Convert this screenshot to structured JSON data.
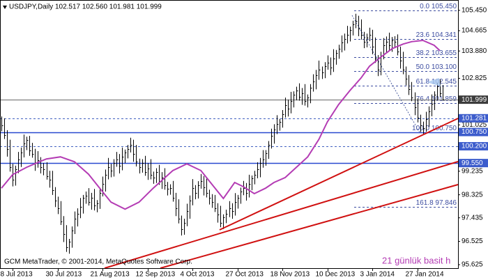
{
  "chart_data": {
    "type": "ohlc",
    "title": "USDJPY,Daily 102.517 102.560 101.981 101.999",
    "footer": "GCM MetaTrader, © 2001-2014, MetaQuotes Software Corp.",
    "series": [
      {
        "color": "#000000",
        "high": [
          101.35,
          101.28,
          100.82,
          100.45,
          99.52,
          99.45,
          99.98,
          100.15,
          100.65,
          100.57,
          100.6,
          100.33,
          100.1,
          100.01,
          99.78,
          99.55,
          99.58,
          99.25,
          99.25,
          98.62,
          98.25,
          98.08,
          97.5,
          97.15,
          96.62,
          97.1,
          97.68,
          97.8,
          98.2,
          98.32,
          98.45,
          98.58,
          98.4,
          98.55,
          98.12,
          98.55,
          99.03,
          99.3,
          99.75,
          99.52,
          99.7,
          99.98,
          99.9,
          100.15,
          100.07,
          100.25,
          100.53,
          100.45,
          100.25,
          99.72,
          99.7,
          99.83,
          99.55,
          99.7,
          99.22,
          99.35,
          99.48,
          99.2,
          99.35,
          98.82,
          98.73,
          98.86,
          98.4,
          98.15,
          97.52,
          97.4,
          97.98,
          98.3,
          98.93,
          98.7,
          98.85,
          99.13,
          99.05,
          98.95,
          98.52,
          98.35,
          98.32,
          98.0,
          97.9,
          97.57,
          97.75,
          98.08,
          98.0,
          98.39,
          98.32,
          98.6,
          98.86,
          98.78,
          99.1,
          99.07,
          99.25,
          99.58,
          99.75,
          100.05,
          100.05,
          100.4,
          100.88,
          101.05,
          101.4,
          101.26,
          101.6,
          102.08,
          102.0,
          102.3,
          102.32,
          102.5,
          102.63,
          102.45,
          102.6,
          102.2,
          102.6,
          102.98,
          103.15,
          103.51,
          103.28,
          103.45,
          103.71,
          103.63,
          103.95,
          103.92,
          104.12,
          104.48,
          104.55,
          104.85,
          104.82,
          105.05,
          105.32,
          105.24,
          105.1,
          104.62,
          104.55,
          104.78,
          104.7,
          104.4,
          103.72,
          103.85,
          104.38,
          104.44,
          104.59,
          104.42,
          104.45,
          104.52,
          104.05,
          103.85,
          103.28,
          102.95,
          102.68,
          102.28,
          102.05,
          101.42,
          101.15,
          101.53,
          101.74,
          102.2,
          102.32,
          102.65,
          102.78,
          102.56
        ],
        "low": [
          100.78,
          100.48,
          99.8,
          99.22,
          98.65,
          98.68,
          99.16,
          99.4,
          99.77,
          100.05,
          99.83,
          99.76,
          99.25,
          99.37,
          99.15,
          99.08,
          98.91,
          98.6,
          98.32,
          97.85,
          97.58,
          97.16,
          96.5,
          96.12,
          96.05,
          96.28,
          96.81,
          97.1,
          97.42,
          97.6,
          97.98,
          97.91,
          97.75,
          97.72,
          97.65,
          97.78,
          98.26,
          98.45,
          98.92,
          99.0,
          99.03,
          99.41,
          99.15,
          99.27,
          99.55,
          99.73,
          99.96,
          99.6,
          99.42,
          99.15,
          99.18,
          99.06,
          98.9,
          98.92,
          98.75,
          98.78,
          98.71,
          98.55,
          98.52,
          98.3,
          98.33,
          98.06,
          97.5,
          97.22,
          96.75,
          96.78,
          97.11,
          97.4,
          97.92,
          98.15,
          98.18,
          98.56,
          98.3,
          98.22,
          97.95,
          97.82,
          97.66,
          97.25,
          97.07,
          97.0,
          97.23,
          97.46,
          97.4,
          97.52,
          97.79,
          97.98,
          98.31,
          98.1,
          98.22,
          98.5,
          98.73,
          98.96,
          99.0,
          99.37,
          99.45,
          99.71,
          100.11,
          100.3,
          100.67,
          100.8,
          100.92,
          101.31,
          101.35,
          101.47,
          101.7,
          101.98,
          101.96,
          101.8,
          101.77,
          101.7,
          101.86,
          102.31,
          102.4,
          102.77,
          102.8,
          102.83,
          103.16,
          102.95,
          103.07,
          103.35,
          103.58,
          103.83,
          103.9,
          104.17,
          104.25,
          104.48,
          104.76,
          104.45,
          104.32,
          103.99,
          104.02,
          104.26,
          103.75,
          103.42,
          102.91,
          102.94,
          103.56,
          103.8,
          103.92,
          103.85,
          104.02,
          103.71,
          103.2,
          102.98,
          102.55,
          102.18,
          101.94,
          101.4,
          101.12,
          100.75,
          100.68,
          100.76,
          100.95,
          101.36,
          101.6,
          101.98,
          102.11,
          101.981
        ],
        "close": [
          101.0,
          100.62,
          100.1,
          99.4,
          98.9,
          99.3,
          99.7,
          99.95,
          100.3,
          100.45,
          100.05,
          99.9,
          99.55,
          99.66,
          99.4,
          99.3,
          99.05,
          98.9,
          98.5,
          98.1,
          97.8,
          97.3,
          96.8,
          96.3,
          96.5,
          96.95,
          97.4,
          97.6,
          97.85,
          98.2,
          98.3,
          98.05,
          98.2,
          97.9,
          98.0,
          98.4,
          98.75,
          99.1,
          99.4,
          99.25,
          99.55,
          99.7,
          99.45,
          99.8,
          99.95,
          100.1,
          100.25,
          99.9,
          99.6,
          99.4,
          99.55,
          99.2,
          99.35,
          99.1,
          99.0,
          99.2,
          98.85,
          99.0,
          98.7,
          98.55,
          98.58,
          98.2,
          97.8,
          97.4,
          97.0,
          97.25,
          97.7,
          98.1,
          98.58,
          98.4,
          98.7,
          98.85,
          98.6,
          98.4,
          98.2,
          98.04,
          97.8,
          97.55,
          97.25,
          97.45,
          97.6,
          97.8,
          97.7,
          98.04,
          98.2,
          98.45,
          98.58,
          98.4,
          98.75,
          98.95,
          99.1,
          99.3,
          99.55,
          99.7,
          99.93,
          100.25,
          100.6,
          100.85,
          101.05,
          101.14,
          101.45,
          101.8,
          101.65,
          101.95,
          102.2,
          102.35,
          102.1,
          102.25,
          101.95,
          102.08,
          102.45,
          102.7,
          102.95,
          103.16,
          103.05,
          103.3,
          103.43,
          103.25,
          103.6,
          103.8,
          103.97,
          104.2,
          104.35,
          104.5,
          104.7,
          104.9,
          105.04,
          104.75,
          104.5,
          104.24,
          104.4,
          104.5,
          104.05,
          103.6,
          103.16,
          103.7,
          104.1,
          104.24,
          104.1,
          104.3,
          104.24,
          103.85,
          103.5,
          103.16,
          102.8,
          102.4,
          102.08,
          101.7,
          101.3,
          101.0,
          100.9,
          101.25,
          101.54,
          101.85,
          102.2,
          102.5,
          102.25,
          101.999
        ]
      }
    ],
    "indicator": {
      "name": "21 günlük basit h",
      "color": "#b43cb4",
      "x": [
        0,
        4,
        9,
        14,
        16,
        21,
        26,
        31,
        35,
        39,
        44,
        49,
        54,
        61,
        66,
        71,
        75,
        79,
        83,
        86,
        90,
        94,
        97,
        101,
        105,
        109,
        113,
        116,
        120,
        124,
        128,
        131,
        135,
        139,
        143,
        146,
        150,
        154,
        156
      ],
      "values": [
        98.58,
        99.1,
        99.39,
        99.62,
        99.71,
        99.79,
        99.6,
        99.12,
        98.58,
        98.04,
        97.77,
        98.04,
        98.58,
        99.26,
        99.52,
        99.26,
        98.72,
        98.18,
        98.8,
        98.64,
        98.37,
        98.58,
        98.8,
        98.99,
        99.39,
        99.79,
        100.47,
        101.14,
        101.81,
        102.35,
        102.84,
        103.29,
        103.64,
        103.97,
        104.15,
        104.24,
        104.29,
        104.1,
        103.9
      ]
    },
    "xlim": [
      -0.5,
      162.5
    ],
    "xticks": [
      {
        "value": 4,
        "label": "8 Jul 2013"
      },
      {
        "value": 20,
        "label": "30 Jul 2013"
      },
      {
        "value": 36,
        "label": "21 Aug 2013"
      },
      {
        "value": 52,
        "label": "12 Sep 2013"
      },
      {
        "value": 68,
        "label": "4 Oct 2013"
      },
      {
        "value": 84,
        "label": "27 Oct 2013"
      },
      {
        "value": 100,
        "label": "18 Nov 2013"
      },
      {
        "value": 116,
        "label": "10 Dec 2013"
      },
      {
        "value": 132,
        "label": "3 Jan 2014"
      },
      {
        "value": 148,
        "label": "27 Jan 2014"
      }
    ],
    "ylim": [
      95.49,
      105.85
    ],
    "yticks": [
      {
        "value": 105.45,
        "label": "105.450"
      },
      {
        "value": 104.665,
        "label": "104.665"
      },
      {
        "value": 103.88,
        "label": "103.880"
      },
      {
        "value": 102.825,
        "label": "102.825"
      },
      {
        "value": 101.025,
        "label": "101.025"
      },
      {
        "value": 99.235,
        "label": "99.235"
      },
      {
        "value": 98.325,
        "label": "98.325"
      },
      {
        "value": 97.435,
        "label": "97.435"
      },
      {
        "value": 96.525,
        "label": "96.525"
      },
      {
        "value": 95.625,
        "label": "95.625"
      }
    ],
    "levels": [
      {
        "value": 101.999,
        "label": "101.999",
        "color": "#909090",
        "label_color": "#3c3c3c",
        "style": "solid"
      },
      {
        "value": 101.281,
        "label": "101.281",
        "color": "#4060c0",
        "label_color": "#3c5ccc",
        "style": "dashed"
      },
      {
        "value": 100.75,
        "label": "100.750",
        "color": "#2848d0",
        "label_color": "#3c5ccc",
        "style": "solid"
      },
      {
        "value": 100.2,
        "label": "100.200",
        "color": "#4060c0",
        "label_color": "#3c5ccc",
        "style": "dashed"
      },
      {
        "value": 99.55,
        "label": "99.550",
        "color": "#2848d0",
        "label_color": "#3c5ccc",
        "style": "solid"
      }
    ],
    "fib_color": "#3c4ca0",
    "fibonacci": [
      {
        "value": 105.45,
        "label": "0.0 105.450"
      },
      {
        "value": 104.341,
        "label": "23.6 104.341"
      },
      {
        "value": 103.655,
        "label": "38.2 103.655"
      },
      {
        "value": 103.1,
        "label": "50.0 103.100"
      },
      {
        "value": 102.545,
        "label": "61.8 102.545"
      },
      {
        "value": 101.859,
        "label": "76.4 101.859"
      },
      {
        "value": 100.75,
        "label": "100.0 100.750"
      },
      {
        "value": 97.846,
        "label": "161.8 97.846"
      }
    ]
  }
}
